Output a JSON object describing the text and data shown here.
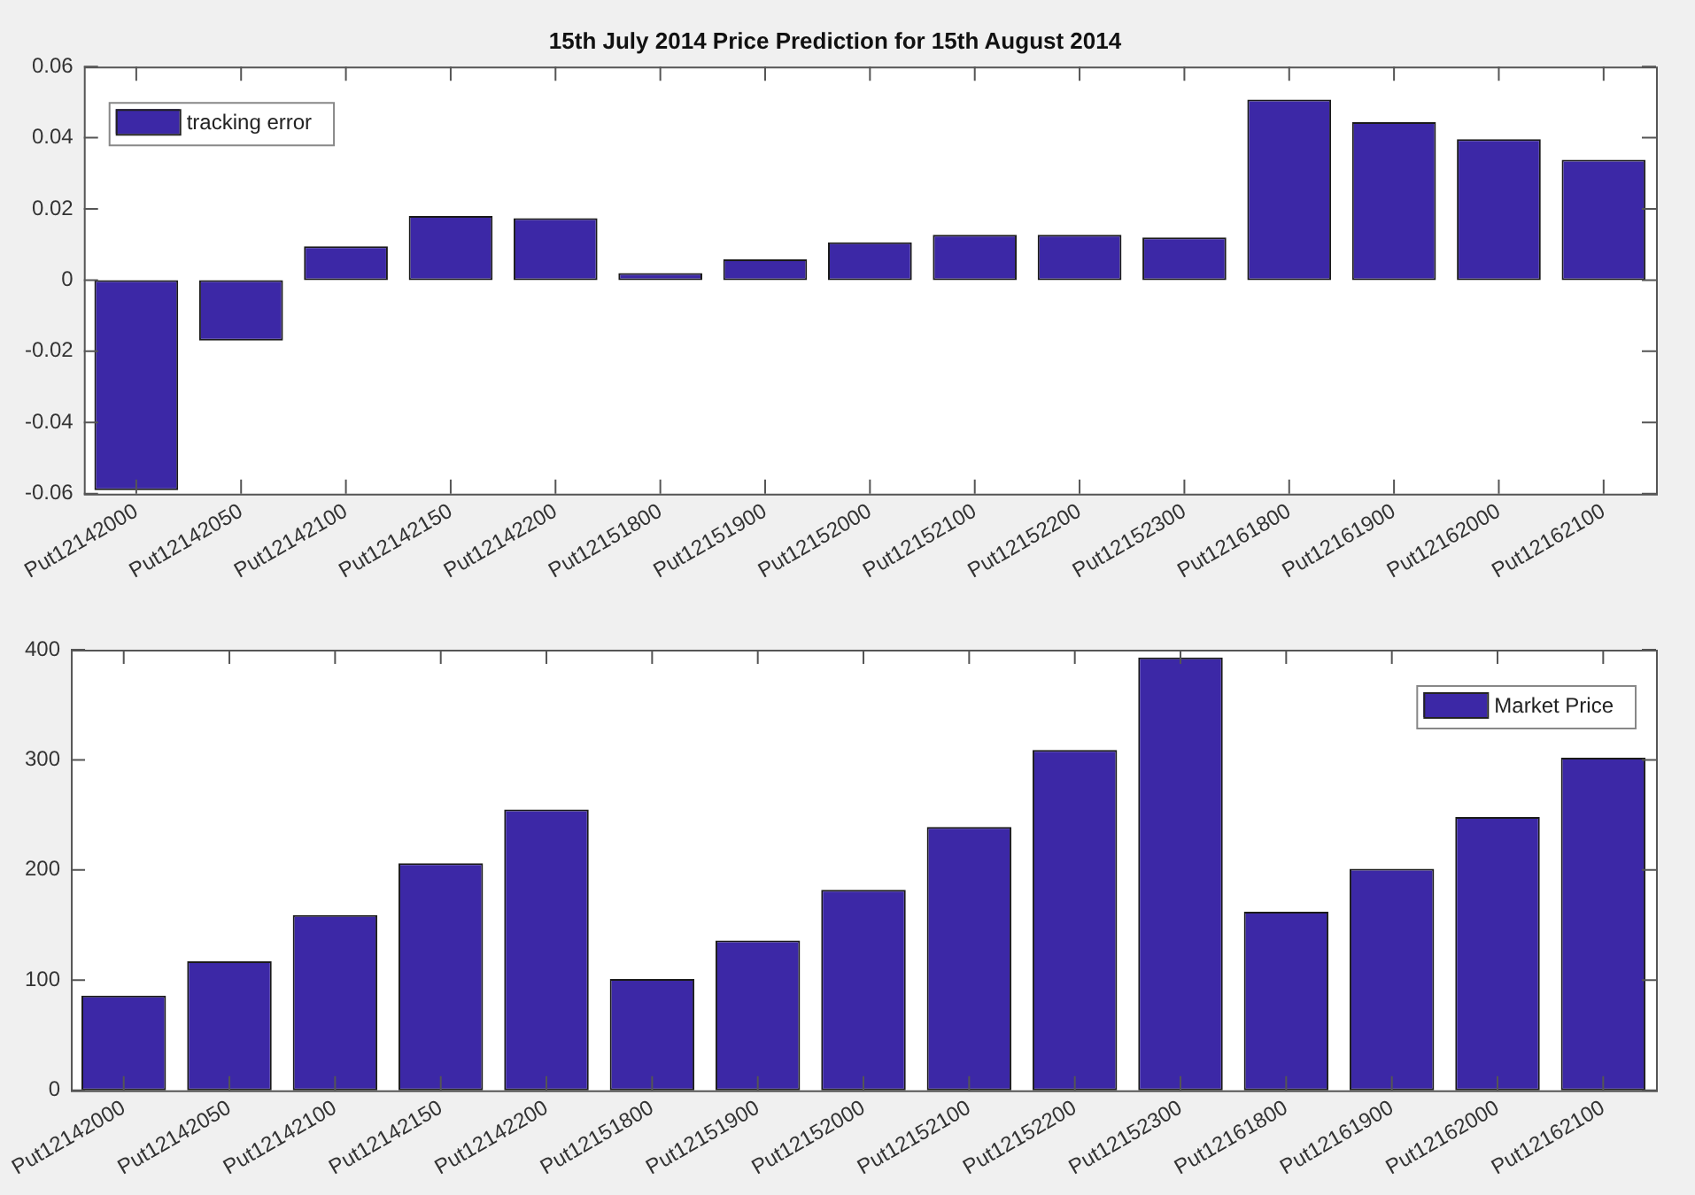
{
  "chart_data": [
    {
      "type": "bar",
      "title": "15th July 2014 Price Prediction for 15th August 2014",
      "categories": [
        "Put12142000",
        "Put12142050",
        "Put12142100",
        "Put12142150",
        "Put12142200",
        "Put12151800",
        "Put12151900",
        "Put12152000",
        "Put12152100",
        "Put12152200",
        "Put12152300",
        "Put12161800",
        "Put12161900",
        "Put12162000",
        "Put12162100"
      ],
      "series": [
        {
          "name": "tracking error",
          "color": "#3c28a6",
          "values": [
            -0.059,
            -0.017,
            0.0095,
            0.018,
            0.0174,
            0.002,
            0.0058,
            0.0106,
            0.0127,
            0.0127,
            0.012,
            0.0507,
            0.0444,
            0.0396,
            0.0338
          ]
        }
      ],
      "ylim": [
        -0.06,
        0.06
      ],
      "yticks": [
        -0.06,
        -0.04,
        -0.02,
        0,
        0.02,
        0.04,
        0.06
      ],
      "grid": false,
      "legend": "top left"
    },
    {
      "type": "bar",
      "categories": [
        "Put12142000",
        "Put12142050",
        "Put12142100",
        "Put12142150",
        "Put12142200",
        "Put12151800",
        "Put12151900",
        "Put12152000",
        "Put12152100",
        "Put12152200",
        "Put12152300",
        "Put12161800",
        "Put12161900",
        "Put12162000",
        "Put12162100"
      ],
      "series": [
        {
          "name": "Market Price",
          "color": "#3c28a6",
          "values": [
            86,
            117,
            159,
            206,
            255,
            101,
            136,
            182,
            239,
            309,
            393,
            162,
            201,
            248,
            302
          ]
        }
      ],
      "ylim": [
        0,
        400
      ],
      "yticks": [
        0,
        100,
        200,
        300,
        400
      ],
      "grid": false,
      "legend": "top right"
    }
  ]
}
